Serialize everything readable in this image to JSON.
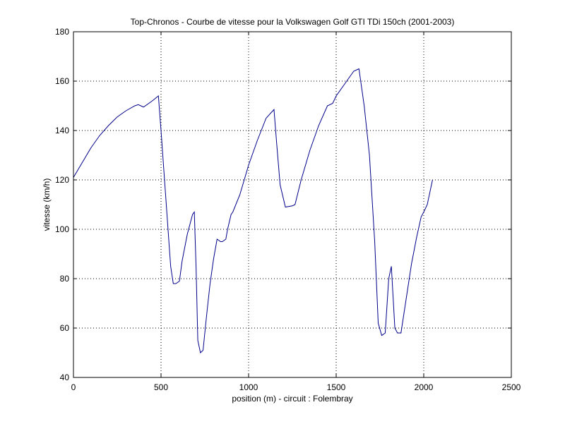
{
  "chart_data": {
    "type": "line",
    "title": "Top-Chronos - Courbe de vitesse pour la Volkswagen Golf GTI TDi 150ch (2001-2003)",
    "xlabel": "position (m) - circuit : Folembray",
    "ylabel": "vitesse (km/h)",
    "xlim": [
      0,
      2500
    ],
    "ylim": [
      40,
      180
    ],
    "xticks": [
      "0",
      "500",
      "1000",
      "1500",
      "2000",
      "2500"
    ],
    "yticks": [
      "40",
      "60",
      "80",
      "100",
      "120",
      "140",
      "160",
      "180"
    ],
    "grid": true,
    "grid_style": "dotted",
    "line_color": "#00008b",
    "series": [
      {
        "x": [
          0,
          50,
          100,
          150,
          200,
          250,
          300,
          350,
          370,
          400,
          450,
          485,
          500,
          520,
          540,
          555,
          570,
          585,
          605,
          620,
          650,
          680,
          690,
          700,
          710,
          725,
          740,
          760,
          780,
          800,
          820,
          840,
          850,
          870,
          880,
          900,
          910,
          950,
          1000,
          1050,
          1100,
          1145,
          1160,
          1180,
          1210,
          1250,
          1265,
          1300,
          1350,
          1400,
          1450,
          1480,
          1500,
          1550,
          1600,
          1630,
          1660,
          1690,
          1720,
          1740,
          1760,
          1780,
          1800,
          1815,
          1835,
          1850,
          1870,
          1900,
          1930,
          1960,
          1985,
          2000,
          2020,
          2050
        ],
        "y": [
          121,
          127,
          133,
          138,
          142,
          145.5,
          148,
          150,
          150.5,
          149.5,
          152,
          154,
          140,
          120,
          100,
          85,
          78,
          78,
          79,
          87,
          98,
          106,
          107,
          85,
          55,
          50,
          51,
          65,
          78,
          88,
          96,
          95,
          95,
          96,
          100,
          106,
          107,
          114,
          126,
          136,
          145,
          148.5,
          135,
          118,
          109,
          109.5,
          110,
          120,
          132,
          142,
          150,
          151,
          154,
          159,
          164,
          165,
          150,
          130,
          95,
          62,
          57,
          58,
          80,
          85,
          60,
          58,
          58,
          72,
          86,
          97,
          105,
          107,
          110,
          120
        ]
      }
    ]
  }
}
